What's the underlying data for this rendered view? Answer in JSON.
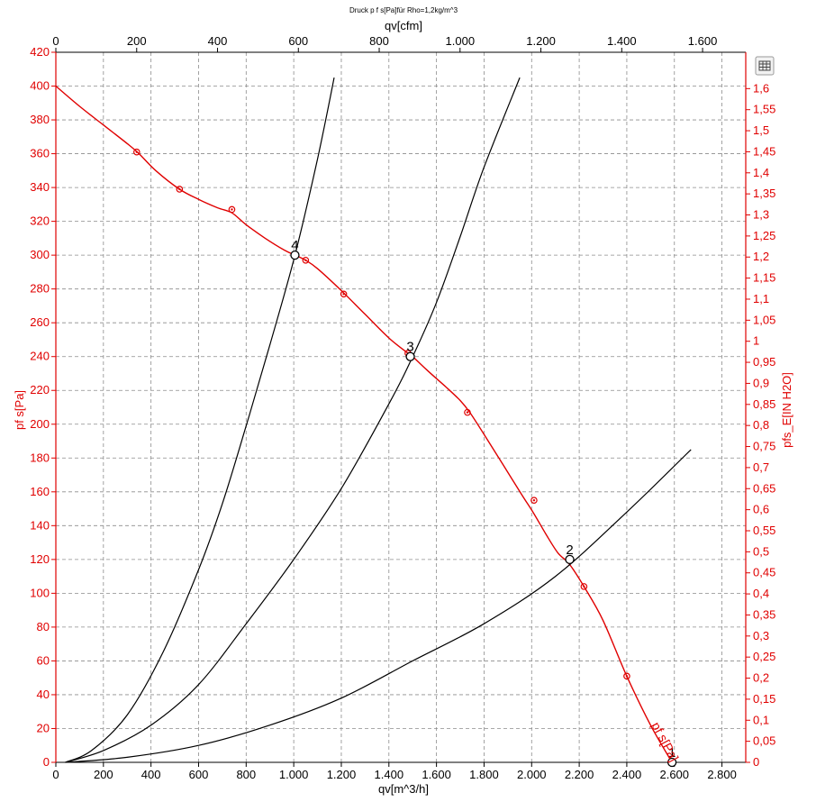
{
  "chart_data": {
    "type": "line",
    "title": "Druck p f s[Pa]für Rho=1,2kg/m^3",
    "xlabel": "qv[m^3/h]",
    "x2label": "qv[cfm]",
    "ylabel": "pf s[Pa]",
    "y2label": "pfs_E[IN H2O]",
    "xlim": [
      0,
      2900
    ],
    "ylim": [
      0,
      420
    ],
    "x2lim": [
      0,
      1706.8
    ],
    "y2lim": [
      0,
      1.6863
    ],
    "grid": true,
    "x_ticks": [
      "0",
      "200",
      "400",
      "600",
      "800",
      "1.000",
      "1.200",
      "1.400",
      "1.600",
      "1.800",
      "2.000",
      "2.200",
      "2.400",
      "2.600",
      "2.800"
    ],
    "x2_ticks": [
      "0",
      "200",
      "400",
      "600",
      "800",
      "1.000",
      "1.200",
      "1.400",
      "1.600"
    ],
    "y_ticks": [
      "0",
      "20",
      "40",
      "60",
      "80",
      "100",
      "120",
      "140",
      "160",
      "180",
      "200",
      "220",
      "240",
      "260",
      "280",
      "300",
      "320",
      "340",
      "360",
      "380",
      "400",
      "420"
    ],
    "y2_ticks": [
      "0",
      "0,05",
      "0,1",
      "0,15",
      "0,2",
      "0,25",
      "0,3",
      "0,35",
      "0,4",
      "0,45",
      "0,5",
      "0,55",
      "0,6",
      "0,65",
      "0,7",
      "0,75",
      "0,8",
      "0,85",
      "0,9",
      "0,95",
      "1",
      "1,05",
      "1,1",
      "1,15",
      "1,2",
      "1,25",
      "1,3",
      "1,35",
      "1,4",
      "1,45",
      "1,5",
      "1,55",
      "1,6"
    ],
    "series": [
      {
        "name": "pf s[Pa]",
        "color": "#e00000",
        "role": "fan-curve",
        "x": [
          0,
          100,
          200,
          300,
          350,
          420,
          520,
          600,
          680,
          740,
          800,
          880,
          960,
          1005,
          1050,
          1100,
          1200,
          1300,
          1400,
          1480,
          1500,
          1560,
          1640,
          1700,
          1740,
          1800,
          1880,
          1960,
          2010,
          2060,
          2110,
          2160,
          2220,
          2300,
          2400,
          2500,
          2590
        ],
        "y": [
          400,
          388,
          377,
          366,
          360,
          350,
          339,
          333,
          328,
          325,
          318,
          310,
          303,
          300,
          297,
          292,
          279,
          265,
          251,
          242,
          240,
          232,
          222,
          214,
          207,
          194,
          176,
          158,
          147,
          135,
          124,
          117,
          104,
          84,
          51,
          22,
          0
        ]
      },
      {
        "name": "",
        "color": "#e00000",
        "role": "measured-points",
        "x": [
          340,
          520,
          740,
          1050,
          1210,
          1480,
          1730,
          2010,
          2220,
          2400
        ],
        "y": [
          361,
          339,
          327,
          297,
          277,
          242,
          207,
          155,
          104,
          51
        ]
      },
      {
        "name": "",
        "color": "#000000",
        "role": "system-curve",
        "x": [
          40,
          300,
          600,
          900,
          1200,
          1500,
          1800,
          2100,
          2400,
          2670
        ],
        "y": [
          0,
          3,
          10,
          22,
          38,
          60,
          82,
          110,
          148,
          185
        ]
      },
      {
        "name": "",
        "color": "#000000",
        "role": "system-curve",
        "x": [
          40,
          200,
          400,
          600,
          800,
          1000,
          1200,
          1400,
          1500,
          1600,
          1700,
          1800,
          1950
        ],
        "y": [
          0,
          7,
          22,
          46,
          82,
          120,
          162,
          212,
          240,
          272,
          311,
          352,
          405
        ]
      },
      {
        "name": "",
        "color": "#000000",
        "role": "system-curve",
        "x": [
          40,
          150,
          300,
          450,
          600,
          700,
          800,
          900,
          1005,
          1100,
          1170
        ],
        "y": [
          0,
          7,
          28,
          65,
          114,
          153,
          199,
          247,
          300,
          357,
          405
        ]
      }
    ],
    "operating_points": [
      {
        "label": "1",
        "x": 2590,
        "y": 0
      },
      {
        "label": "2",
        "x": 2160,
        "y": 120
      },
      {
        "label": "3",
        "x": 1490,
        "y": 240
      },
      {
        "label": "4",
        "x": 1005,
        "y": 300
      }
    ],
    "curve_label": "pf s[Pa]"
  },
  "toolbar": {
    "icon": "grid-table-icon"
  }
}
